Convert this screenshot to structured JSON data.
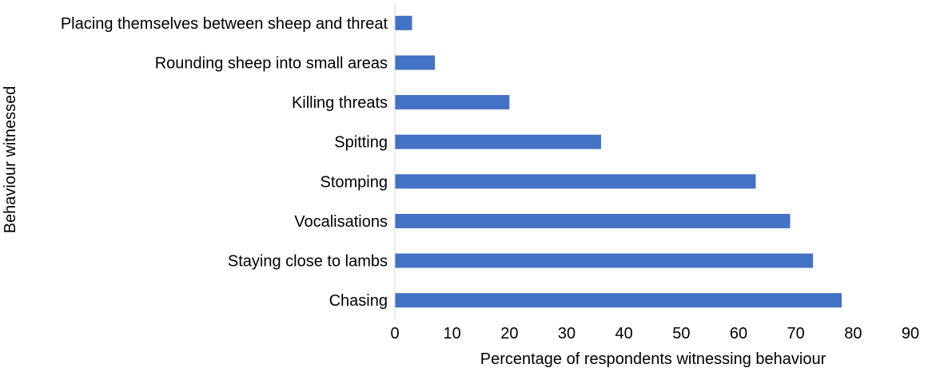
{
  "chart_data": {
    "type": "bar",
    "orientation": "horizontal",
    "title": "",
    "xlabel": "Percentage of respondents witnessing behaviour",
    "ylabel": "Behaviour witnessed",
    "categories": [
      "Placing themselves between sheep and threat",
      "Rounding sheep into small areas",
      "Killing threats",
      "Spitting",
      "Stomping",
      "Vocalisations",
      "Staying close to lambs",
      "Chasing"
    ],
    "values": [
      3,
      7,
      20,
      36,
      63,
      69,
      73,
      78
    ],
    "xlim": [
      0,
      90
    ],
    "xticks": [
      "0",
      "10",
      "20",
      "30",
      "40",
      "50",
      "60",
      "70",
      "80",
      "90"
    ],
    "grid": false,
    "legend": "none",
    "bar_color": "#4472C4",
    "axis_color": "#D9D9D9"
  }
}
